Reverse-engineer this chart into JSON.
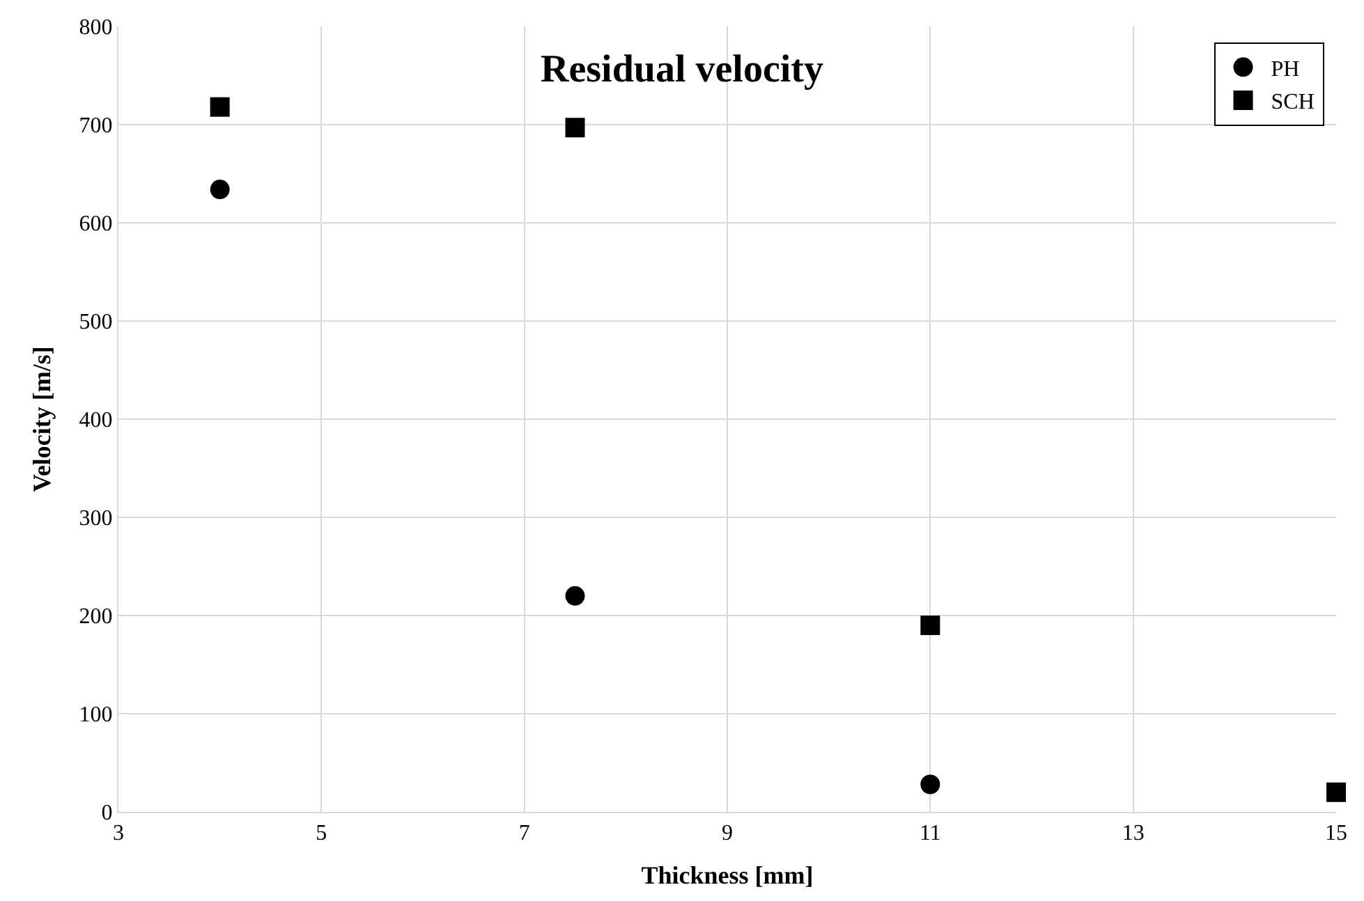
{
  "chart_data": {
    "type": "scatter",
    "title": "Residual velocity",
    "xlabel": "Thickness [mm]",
    "ylabel": "Velocity [m/s]",
    "xlim": [
      3,
      15
    ],
    "xticks": [
      3,
      5,
      7,
      9,
      11,
      13,
      15
    ],
    "ylim": [
      0,
      800
    ],
    "yticks": [
      0,
      100,
      200,
      300,
      400,
      500,
      600,
      700,
      800
    ],
    "grid": true,
    "legend": "top right",
    "series": [
      {
        "name": "PH",
        "color": "#000000",
        "marker": "circle",
        "x": [
          4,
          7.5,
          11
        ],
        "values": [
          634,
          220,
          28
        ]
      },
      {
        "name": "SCH",
        "color": "#000000",
        "marker": "square",
        "x": [
          4,
          7.5,
          11,
          15
        ],
        "values": [
          718,
          697,
          190,
          20
        ]
      }
    ]
  }
}
